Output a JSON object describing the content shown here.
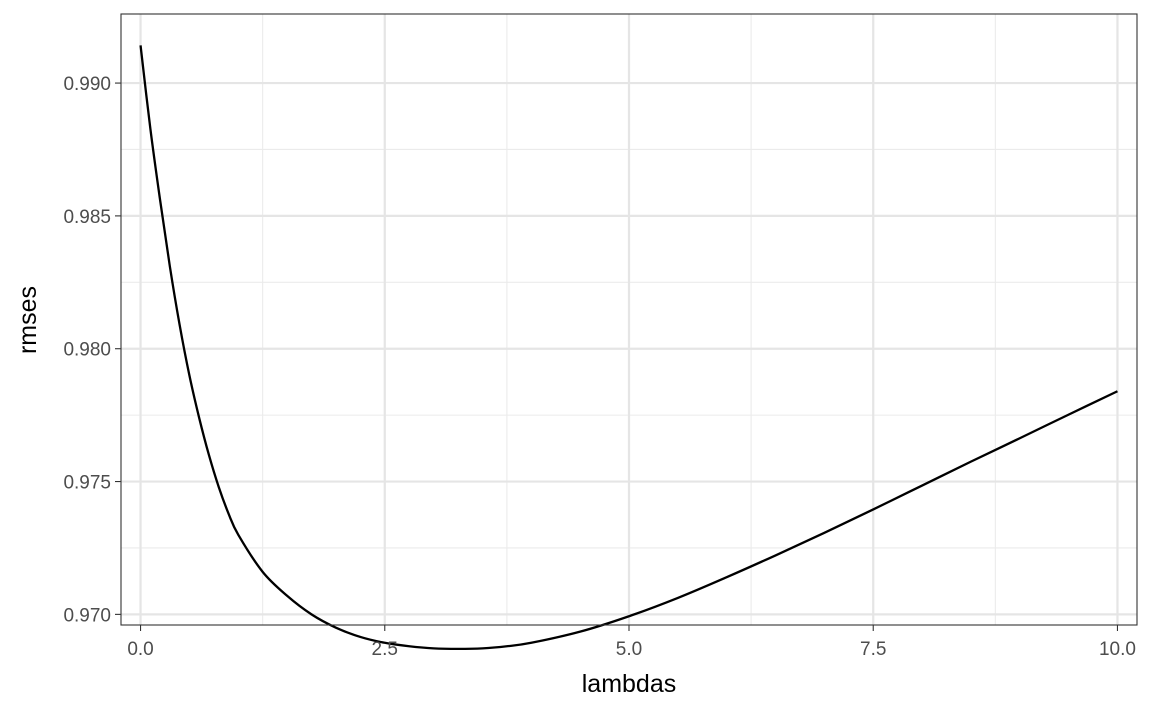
{
  "chart_data": {
    "type": "line",
    "title": "",
    "xlabel": "lambdas",
    "ylabel": "rmses",
    "xlim": [
      -0.2,
      10.2
    ],
    "ylim": [
      0.9696,
      0.9926
    ],
    "x_ticks": [
      0.0,
      2.5,
      5.0,
      7.5,
      10.0
    ],
    "x_tick_labels": [
      "0.0",
      "2.5",
      "5.0",
      "7.5",
      "10.0"
    ],
    "y_ticks": [
      0.97,
      0.975,
      0.98,
      0.985,
      0.99
    ],
    "y_tick_labels": [
      "0.970",
      "0.975",
      "0.980",
      "0.985",
      "0.990"
    ],
    "x_minor_ticks": [
      1.25,
      3.75,
      6.25,
      8.75
    ],
    "y_minor_ticks": [
      0.9725,
      0.9775,
      0.9825,
      0.9875
    ],
    "grid": true,
    "legend": "none",
    "series": [
      {
        "color": "#000000",
        "x": [
          0,
          0.1,
          0.2,
          0.3,
          0.4,
          0.5,
          0.6,
          0.7,
          0.8,
          0.9,
          1.0,
          1.25,
          1.5,
          1.75,
          2.0,
          2.25,
          2.5,
          2.75,
          3.0,
          3.25,
          3.5,
          3.75,
          4.0,
          4.5,
          5.0,
          5.5,
          6.0,
          6.5,
          7.0,
          7.5,
          8.0,
          8.5,
          9.0,
          9.5,
          10.0
        ],
        "values": [
          0.99142,
          0.9883,
          0.9856,
          0.9831,
          0.9809,
          0.979,
          0.9774,
          0.976,
          0.9748,
          0.9738,
          0.973,
          0.9716,
          0.9707,
          0.97,
          0.9695,
          0.96915,
          0.96893,
          0.9688,
          0.96872,
          0.9687,
          0.96872,
          0.9688,
          0.96893,
          0.96935,
          0.96993,
          0.97062,
          0.9714,
          0.97222,
          0.97307,
          0.97395,
          0.97485,
          0.97575,
          0.97663,
          0.97752,
          0.9784
        ]
      }
    ]
  }
}
